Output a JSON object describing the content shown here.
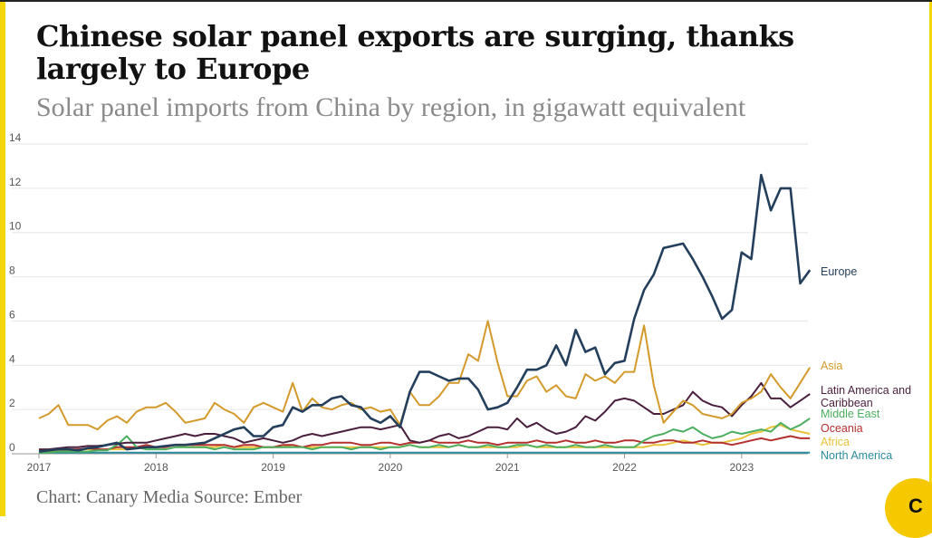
{
  "header": {
    "title": "Chinese solar panel exports are surging, thanks largely to Europe",
    "subtitle": "Solar panel imports from China by region, in gigawatt equivalent"
  },
  "footer": {
    "source": "Chart: Canary Media Source: Ember",
    "logo_letter": "C"
  },
  "chart_data": {
    "type": "line",
    "title": "Chinese solar panel exports are surging, thanks largely to Europe",
    "subtitle": "Solar panel imports from China by region, in gigawatt equivalent",
    "xlabel": "",
    "ylabel": "",
    "xlim": [
      2017,
      2023.6
    ],
    "ylim": [
      0,
      14
    ],
    "x_ticks": [
      "2017",
      "2018",
      "2019",
      "2020",
      "2021",
      "2022",
      "2023"
    ],
    "y_ticks": [
      "0",
      "2",
      "4",
      "6",
      "8",
      "10",
      "12",
      "14"
    ],
    "grid": true,
    "legend": "inline labels at line ends",
    "x": [
      2017.0,
      2017.083,
      2017.167,
      2017.25,
      2017.333,
      2017.417,
      2017.5,
      2017.583,
      2017.667,
      2017.75,
      2017.833,
      2017.917,
      2018.0,
      2018.083,
      2018.167,
      2018.25,
      2018.333,
      2018.417,
      2018.5,
      2018.583,
      2018.667,
      2018.75,
      2018.833,
      2018.917,
      2019.0,
      2019.083,
      2019.167,
      2019.25,
      2019.333,
      2019.417,
      2019.5,
      2019.583,
      2019.667,
      2019.75,
      2019.833,
      2019.917,
      2020.0,
      2020.083,
      2020.167,
      2020.25,
      2020.333,
      2020.417,
      2020.5,
      2020.583,
      2020.667,
      2020.75,
      2020.833,
      2020.917,
      2021.0,
      2021.083,
      2021.167,
      2021.25,
      2021.333,
      2021.417,
      2021.5,
      2021.583,
      2021.667,
      2021.75,
      2021.833,
      2021.917,
      2022.0,
      2022.083,
      2022.167,
      2022.25,
      2022.333,
      2022.417,
      2022.5,
      2022.583,
      2022.667,
      2022.75,
      2022.833,
      2022.917,
      2023.0,
      2023.083,
      2023.167,
      2023.25,
      2023.333,
      2023.417,
      2023.5,
      2023.583
    ],
    "series": [
      {
        "name": "Europe",
        "color": "#243f5c",
        "values": [
          0.1,
          0.15,
          0.2,
          0.2,
          0.15,
          0.25,
          0.3,
          0.4,
          0.5,
          0.2,
          0.25,
          0.3,
          0.3,
          0.35,
          0.4,
          0.4,
          0.45,
          0.5,
          0.7,
          0.9,
          1.1,
          1.2,
          0.8,
          0.8,
          1.2,
          1.3,
          2.1,
          1.9,
          2.2,
          2.2,
          2.5,
          2.6,
          2.2,
          2.1,
          1.6,
          1.4,
          1.7,
          1.2,
          2.8,
          3.7,
          3.7,
          3.5,
          3.3,
          3.4,
          3.4,
          2.9,
          2.0,
          2.1,
          2.3,
          3.0,
          3.8,
          3.8,
          4.0,
          4.9,
          4.0,
          5.6,
          4.6,
          4.8,
          3.6,
          4.1,
          4.2,
          6.1,
          7.4,
          8.1,
          9.3,
          9.4,
          9.5,
          8.8,
          8.0,
          7.1,
          6.1,
          6.5,
          9.1,
          8.8,
          12.6,
          11.0,
          12.0,
          12.0,
          7.7,
          8.3
        ]
      },
      {
        "name": "Asia",
        "color": "#d39a2b",
        "values": [
          1.6,
          1.8,
          2.2,
          1.3,
          1.3,
          1.3,
          1.1,
          1.5,
          1.7,
          1.4,
          1.9,
          2.1,
          2.1,
          2.3,
          1.9,
          1.4,
          1.5,
          1.6,
          2.3,
          2.0,
          1.8,
          1.4,
          2.1,
          2.3,
          2.1,
          1.9,
          3.2,
          1.9,
          2.5,
          2.1,
          2.0,
          2.2,
          2.3,
          2.0,
          2.1,
          1.9,
          2.0,
          1.3,
          2.8,
          2.2,
          2.2,
          2.6,
          3.2,
          3.2,
          4.5,
          4.2,
          6.0,
          4.1,
          2.6,
          2.6,
          3.3,
          3.5,
          2.8,
          3.1,
          2.6,
          2.5,
          3.6,
          3.3,
          3.5,
          3.2,
          3.7,
          3.7,
          5.8,
          3.1,
          1.4,
          1.9,
          2.4,
          2.2,
          1.8,
          1.7,
          1.6,
          1.8,
          2.3,
          2.5,
          2.8,
          3.6,
          3.0,
          2.5,
          3.2,
          3.9
        ]
      },
      {
        "name": "Latin America and Caribbean",
        "color": "#4a1f3d",
        "values": [
          0.2,
          0.2,
          0.25,
          0.3,
          0.3,
          0.35,
          0.35,
          0.4,
          0.45,
          0.5,
          0.5,
          0.5,
          0.6,
          0.7,
          0.8,
          0.9,
          0.8,
          0.9,
          0.9,
          0.8,
          0.7,
          0.5,
          0.6,
          0.7,
          0.6,
          0.5,
          0.6,
          0.8,
          0.9,
          0.8,
          0.9,
          1.0,
          1.1,
          1.2,
          1.2,
          1.1,
          1.2,
          1.3,
          0.6,
          0.5,
          0.6,
          0.8,
          0.9,
          0.7,
          0.8,
          1.0,
          1.2,
          1.2,
          1.1,
          1.6,
          1.2,
          1.4,
          1.1,
          0.9,
          1.0,
          1.2,
          1.7,
          1.5,
          1.9,
          2.4,
          2.5,
          2.4,
          2.1,
          1.8,
          1.8,
          2.0,
          2.2,
          2.8,
          2.4,
          2.2,
          2.1,
          1.7,
          2.2,
          2.6,
          3.2,
          2.5,
          2.5,
          2.1,
          2.4,
          2.7
        ]
      },
      {
        "name": "Middle East",
        "color": "#4cae5f",
        "values": [
          0.05,
          0.05,
          0.1,
          0.1,
          0.1,
          0.1,
          0.15,
          0.15,
          0.4,
          0.8,
          0.3,
          0.2,
          0.2,
          0.2,
          0.3,
          0.3,
          0.3,
          0.3,
          0.2,
          0.3,
          0.2,
          0.2,
          0.2,
          0.3,
          0.3,
          0.3,
          0.3,
          0.3,
          0.2,
          0.3,
          0.3,
          0.3,
          0.2,
          0.3,
          0.3,
          0.2,
          0.3,
          0.3,
          0.4,
          0.3,
          0.3,
          0.4,
          0.3,
          0.4,
          0.3,
          0.3,
          0.4,
          0.3,
          0.3,
          0.4,
          0.4,
          0.3,
          0.4,
          0.3,
          0.3,
          0.4,
          0.3,
          0.3,
          0.4,
          0.3,
          0.3,
          0.3,
          0.6,
          0.8,
          0.9,
          1.1,
          1.0,
          1.2,
          0.9,
          0.7,
          0.8,
          1.0,
          0.9,
          1.0,
          1.1,
          1.0,
          1.4,
          1.1,
          1.3,
          1.6
        ]
      },
      {
        "name": "Oceania",
        "color": "#b3302e",
        "values": [
          0.1,
          0.15,
          0.2,
          0.2,
          0.2,
          0.25,
          0.2,
          0.2,
          0.3,
          0.3,
          0.3,
          0.4,
          0.3,
          0.3,
          0.4,
          0.4,
          0.4,
          0.4,
          0.4,
          0.4,
          0.3,
          0.4,
          0.4,
          0.3,
          0.3,
          0.4,
          0.4,
          0.3,
          0.4,
          0.4,
          0.5,
          0.5,
          0.5,
          0.4,
          0.4,
          0.5,
          0.5,
          0.4,
          0.5,
          0.5,
          0.6,
          0.5,
          0.5,
          0.5,
          0.6,
          0.5,
          0.5,
          0.4,
          0.5,
          0.5,
          0.5,
          0.6,
          0.5,
          0.5,
          0.6,
          0.5,
          0.5,
          0.6,
          0.5,
          0.5,
          0.6,
          0.6,
          0.5,
          0.5,
          0.6,
          0.6,
          0.5,
          0.5,
          0.6,
          0.5,
          0.5,
          0.4,
          0.5,
          0.6,
          0.7,
          0.6,
          0.7,
          0.8,
          0.7,
          0.7
        ]
      },
      {
        "name": "Africa",
        "color": "#e8c33a",
        "values": [
          0.1,
          0.1,
          0.15,
          0.15,
          0.2,
          0.2,
          0.2,
          0.2,
          0.2,
          0.2,
          0.3,
          0.3,
          0.3,
          0.3,
          0.4,
          0.3,
          0.3,
          0.3,
          0.3,
          0.4,
          0.3,
          0.3,
          0.3,
          0.3,
          0.3,
          0.3,
          0.4,
          0.3,
          0.3,
          0.3,
          0.3,
          0.3,
          0.3,
          0.3,
          0.3,
          0.3,
          0.3,
          0.3,
          0.4,
          0.3,
          0.3,
          0.3,
          0.3,
          0.4,
          0.3,
          0.3,
          0.3,
          0.3,
          0.3,
          0.3,
          0.4,
          0.3,
          0.3,
          0.3,
          0.3,
          0.3,
          0.3,
          0.3,
          0.3,
          0.3,
          0.3,
          0.3,
          0.3,
          0.4,
          0.4,
          0.5,
          0.6,
          0.5,
          0.4,
          0.5,
          0.5,
          0.6,
          0.7,
          0.9,
          1.0,
          1.2,
          1.3,
          1.1,
          1.0,
          0.9
        ]
      },
      {
        "name": "North America",
        "color": "#2a8c9c",
        "values": [
          0.05,
          0.05,
          0.05,
          0.05,
          0.05,
          0.05,
          0.05,
          0.05,
          0.05,
          0.05,
          0.05,
          0.05,
          0.05,
          0.05,
          0.05,
          0.05,
          0.05,
          0.05,
          0.05,
          0.05,
          0.05,
          0.05,
          0.05,
          0.05,
          0.05,
          0.05,
          0.05,
          0.05,
          0.05,
          0.05,
          0.05,
          0.05,
          0.05,
          0.05,
          0.05,
          0.05,
          0.05,
          0.05,
          0.05,
          0.05,
          0.05,
          0.05,
          0.05,
          0.05,
          0.05,
          0.05,
          0.05,
          0.05,
          0.05,
          0.05,
          0.05,
          0.05,
          0.05,
          0.05,
          0.05,
          0.05,
          0.05,
          0.05,
          0.05,
          0.05,
          0.05,
          0.05,
          0.05,
          0.05,
          0.05,
          0.05,
          0.05,
          0.05,
          0.05,
          0.05,
          0.05,
          0.05,
          0.05,
          0.05,
          0.05,
          0.05,
          0.05,
          0.05,
          0.05,
          0.05
        ]
      }
    ],
    "labels": [
      {
        "series": "Europe",
        "lines": [
          "Europe"
        ]
      },
      {
        "series": "Asia",
        "lines": [
          "Asia"
        ]
      },
      {
        "series": "Latin America and Caribbean",
        "lines": [
          "Latin America and",
          "Caribbean"
        ]
      },
      {
        "series": "Middle East",
        "lines": [
          "Middle East"
        ]
      },
      {
        "series": "Oceania",
        "lines": [
          "Oceania"
        ]
      },
      {
        "series": "Africa",
        "lines": [
          "Africa"
        ]
      },
      {
        "series": "North America",
        "lines": [
          "North America"
        ]
      }
    ]
  }
}
